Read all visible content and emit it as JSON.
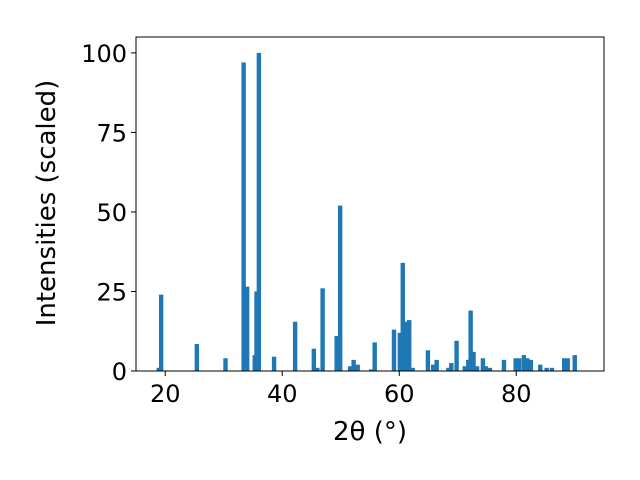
{
  "chart_data": {
    "type": "bar",
    "xlabel": "2θ (°)",
    "ylabel": "Intensities (scaled)",
    "xlim": [
      15,
      95
    ],
    "ylim": [
      0,
      105
    ],
    "xticks": [
      20,
      40,
      60,
      80
    ],
    "yticks": [
      0,
      25,
      50,
      75,
      100
    ],
    "x_tick_labels": [
      "20",
      "40",
      "60",
      "80"
    ],
    "y_tick_labels": [
      "0",
      "25",
      "50",
      "75",
      "100"
    ],
    "bar_color": "#1f77b4",
    "grid": false,
    "x": [
      18.9,
      19.3,
      25.4,
      30.3,
      33.4,
      34.0,
      35.3,
      35.6,
      36.0,
      38.6,
      42.2,
      45.4,
      46.0,
      46.9,
      49.3,
      49.9,
      51.6,
      52.2,
      52.9,
      55.2,
      55.8,
      59.1,
      60.1,
      60.6,
      61.1,
      61.4,
      61.7,
      62.3,
      64.9,
      65.8,
      66.4,
      68.4,
      68.9,
      69.8,
      71.2,
      71.8,
      72.2,
      72.7,
      73.3,
      74.3,
      74.8,
      75.5,
      77.9,
      79.9,
      80.5,
      81.3,
      81.9,
      82.5,
      84.1,
      85.2,
      86.1,
      88.2,
      88.8,
      90.0
    ],
    "values": [
      1,
      24,
      8.5,
      4,
      97,
      26.5,
      5,
      25,
      100,
      4.5,
      15.5,
      7,
      1,
      26,
      11,
      52,
      1.5,
      3.5,
      2,
      0.5,
      9,
      13,
      12,
      34,
      15.5,
      11,
      16,
      1,
      6.5,
      2,
      3.5,
      1,
      2.5,
      9.5,
      1.5,
      3.5,
      19,
      6,
      1.5,
      4,
      1.5,
      1,
      3.5,
      4,
      4,
      5,
      4,
      3.5,
      2,
      1,
      1,
      4,
      4,
      5
    ]
  }
}
